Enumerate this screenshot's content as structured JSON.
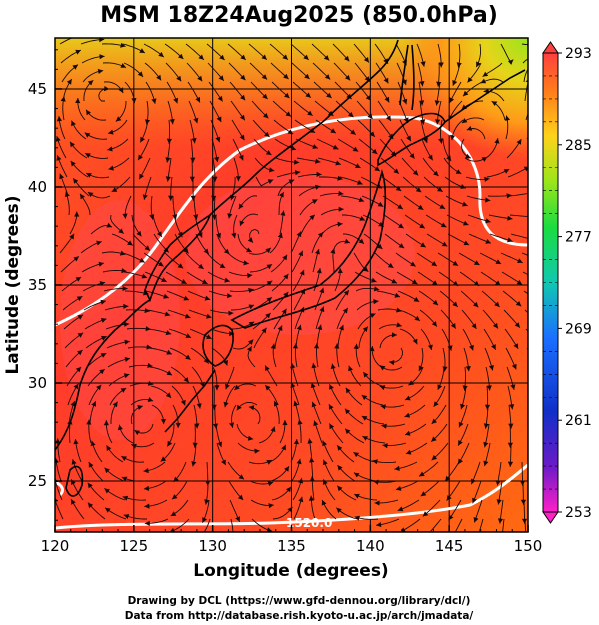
{
  "title": "MSM 18Z24Aug2025 (850.0hPa)",
  "x_axis": {
    "label": "Longitude (degrees)",
    "ticks": [
      "120",
      "125",
      "130",
      "135",
      "140",
      "145",
      "150"
    ]
  },
  "y_axis": {
    "label": "Latitude  (degrees)",
    "ticks": [
      "25",
      "30",
      "35",
      "40",
      "45"
    ]
  },
  "map": {
    "lon_range": [
      120,
      150
    ],
    "lat_range": [
      22.4,
      47.6
    ],
    "field": "temperature (shaded) with wind streamlines",
    "contour_labels": [
      "1520.0"
    ]
  },
  "colorbar": {
    "ticks": [
      "293",
      "285",
      "277",
      "269",
      "261",
      "253"
    ],
    "colors": [
      "#ff4040",
      "#ff7a1a",
      "#ffd21a",
      "#9be51a",
      "#1adc40",
      "#10c8b0",
      "#1a70ff",
      "#1030c8",
      "#6a1ac8",
      "#ff20c8"
    ]
  },
  "footer": {
    "line1": "Drawing by DCL (https://www.gfd-dennou.org/library/dcl/)",
    "line2": "Data from http://database.rish.kyoto-u.ac.jp/arch/jmadata/"
  }
}
